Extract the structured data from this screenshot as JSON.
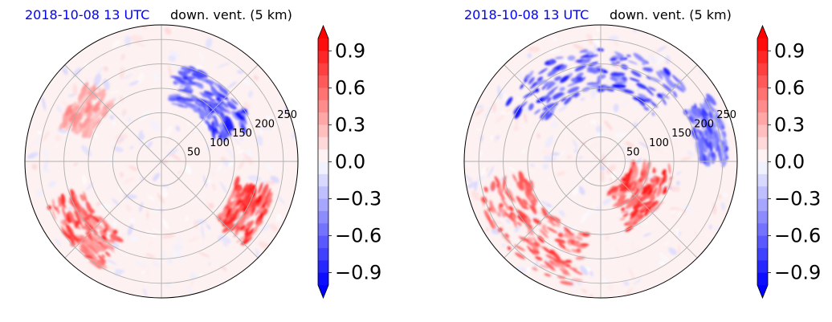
{
  "chart_data": [
    {
      "type": "polar-contourf",
      "time_label": "2018-10-08 13 UTC",
      "variable_label": "down. vent. (5 km)",
      "radial_ticks": [
        "50",
        "100",
        "150",
        "200",
        "250"
      ],
      "radial_values": [
        50,
        100,
        150,
        200,
        250
      ],
      "rmax": 280,
      "colormap": "bwr",
      "colorbar": {
        "ticks": [
          "0.9",
          "0.6",
          "0.3",
          "0.0",
          "−0.3",
          "−0.6",
          "−0.9"
        ],
        "values": [
          0.9,
          0.6,
          0.3,
          0.0,
          -0.3,
          -0.6,
          -0.9
        ],
        "range": [
          -1.0,
          1.0
        ],
        "extend": "both"
      },
      "features": [
        {
          "kind": "negative band",
          "arc_deg": [
            20,
            80
          ],
          "r": [
            120,
            200
          ],
          "strength": -1.0
        },
        {
          "kind": "positive patch",
          "arc_deg": [
            -45,
            -15
          ],
          "r": [
            160,
            240
          ],
          "strength": 1.0
        },
        {
          "kind": "positive band",
          "arc_deg": [
            -160,
            -120
          ],
          "r": [
            170,
            250
          ],
          "strength": 0.9
        },
        {
          "kind": "positive spots",
          "arc_deg": [
            130,
            160
          ],
          "r": [
            150,
            220
          ],
          "strength": 0.5
        }
      ]
    },
    {
      "type": "polar-contourf",
      "time_label": "2018-10-08 13 UTC",
      "variable_label": "down. vent. (5 km)",
      "radial_ticks": [
        "50",
        "100",
        "150",
        "200",
        "250"
      ],
      "radial_values": [
        50,
        100,
        150,
        200,
        250
      ],
      "rmax": 280,
      "colormap": "bwr",
      "colorbar": {
        "ticks": [
          "0.9",
          "0.6",
          "0.3",
          "0.0",
          "−0.3",
          "−0.6",
          "−0.9"
        ],
        "values": [
          0.9,
          0.6,
          0.3,
          0.0,
          -0.3,
          -0.6,
          -0.9
        ],
        "range": [
          -1.0,
          1.0
        ],
        "extend": "both"
      },
      "features": [
        {
          "kind": "negative band",
          "arc_deg": [
            40,
            150
          ],
          "r": [
            140,
            230
          ],
          "strength": -1.0
        },
        {
          "kind": "positive band",
          "arc_deg": [
            -70,
            -5
          ],
          "r": [
            60,
            150
          ],
          "strength": 1.0
        },
        {
          "kind": "positive band",
          "arc_deg": [
            -170,
            -100
          ],
          "r": [
            150,
            260
          ],
          "strength": 0.9
        },
        {
          "kind": "negative spots",
          "arc_deg": [
            0,
            30
          ],
          "r": [
            200,
            260
          ],
          "strength": -0.8
        }
      ]
    }
  ]
}
